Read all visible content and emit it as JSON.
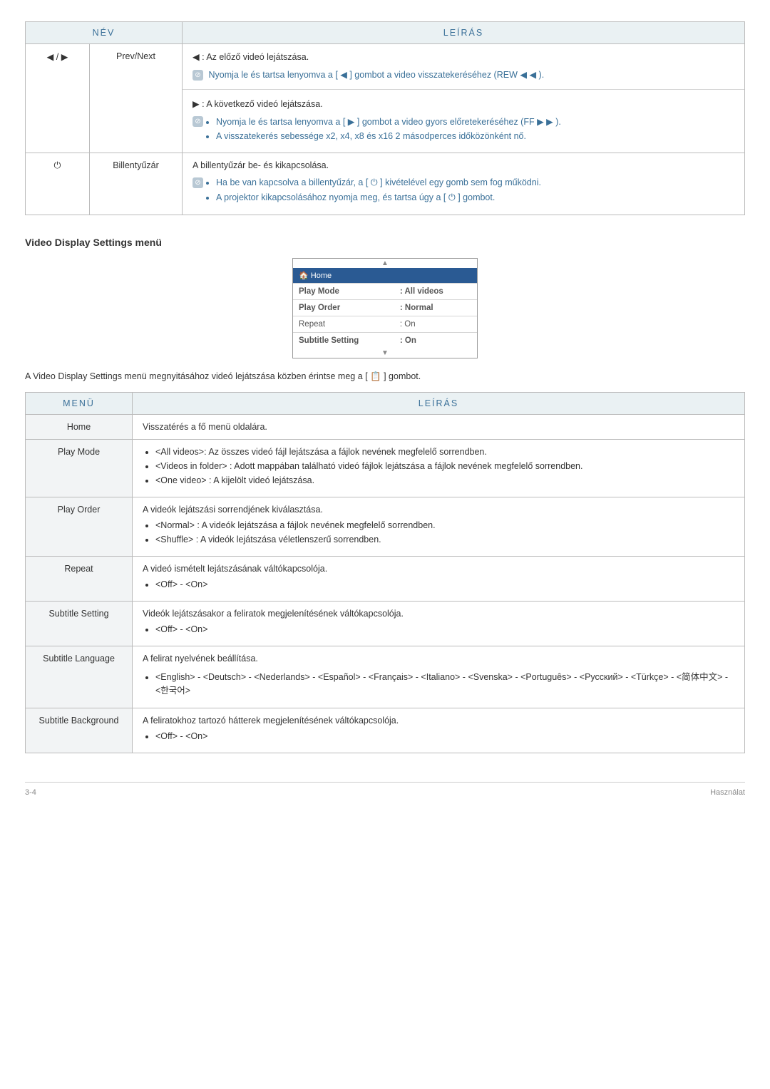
{
  "table1": {
    "headers": [
      "NÉV",
      "LEÍRÁS"
    ],
    "rows": [
      {
        "symbol": "◀ / ▶",
        "name": "Prev/Next",
        "blocks": [
          {
            "text": "◀ : Az előző videó lejátszása.",
            "note": "Nyomja le és tartsa lenyomva a [ ◀ ] gombot a video visszatekeréséhez (REW ◀ ◀ )."
          },
          {
            "text": "▶ : A következő videó lejátszása.",
            "bullets": [
              "Nyomja le és tartsa lenyomva a [ ▶ ] gombot a video gyors előretekeréséhez (FF ▶ ▶ ).",
              "A visszatekerés sebessége x2, x4, x8 és x16 2 másodperces időközönként nő."
            ]
          }
        ]
      },
      {
        "symbol": "⏻",
        "name": "Billentyűzár",
        "blocks": [
          {
            "text": "A billentyűzár be- és kikapcsolása.",
            "bullets": [
              "Ha be van kapcsolva a billentyűzár, a [ ⏻ ] kivételével egy gomb sem fog működni.",
              "A projektor kikapcsolásához nyomja meg, és tartsa úgy a [ ⏻ ] gombot."
            ]
          }
        ]
      }
    ]
  },
  "section_title": "Video Display Settings menü",
  "menu": {
    "home": "Home",
    "items": [
      {
        "k": "Play Mode",
        "v": ": All videos",
        "bold": true
      },
      {
        "k": "Play Order",
        "v": ": Normal",
        "bold": true
      },
      {
        "k": "Repeat",
        "v": ": On",
        "bold": false
      },
      {
        "k": "Subtitle Setting",
        "v": ": On",
        "bold": true
      }
    ]
  },
  "intro": "A Video Display Settings menü megnyitásához videó lejátszása közben érintse meg a [ 📋 ] gombot.",
  "table2": {
    "headers": [
      "MENÜ",
      "LEÍRÁS"
    ],
    "rows": [
      {
        "m": "Home",
        "d": [
          "Visszatérés a fő menü oldalára."
        ]
      },
      {
        "m": "Play Mode",
        "d": [
          "<All videos>: Az összes videó fájl lejátszása a fájlok nevének megfelelő sorrendben.",
          "<Videos in folder> : Adott mappában található videó fájlok lejátszása a fájlok nevének megfelelő sorrendben.",
          "<One video> : A kijelölt videó lejátszása."
        ],
        "bullets": true
      },
      {
        "m": "Play Order",
        "d": [
          "A videók lejátszási sorrendjének kiválasztása.",
          "<Normal> : A videók lejátszása a fájlok nevének megfelelő sorrendben.",
          "<Shuffle> : A videók lejátszása véletlenszerű sorrendben."
        ],
        "bullets": "after1"
      },
      {
        "m": "Repeat",
        "d": [
          "A videó ismételt lejátszásának váltókapcsolója.",
          "<Off> - <On>"
        ],
        "bullets": "after1"
      },
      {
        "m": "Subtitle Setting",
        "d": [
          "Videók lejátszásakor a feliratok megjelenítésének váltókapcsolója.",
          "<Off> - <On>"
        ],
        "bullets": "after1"
      },
      {
        "m": "Subtitle Language",
        "d": [
          "A felirat nyelvének beállítása.",
          "<English> - <Deutsch> - <Nederlands> - <Español> - <Français> - <Italiano> - <Svenska> - <Português> - <Русский> - <Türkçe> - <简体中文> - <한국어>"
        ],
        "bullets": "after1"
      },
      {
        "m": "Subtitle Background",
        "d": [
          "A feliratokhoz tartozó hátterek megjelenítésének váltókapcsolója.",
          "<Off> - <On>"
        ],
        "bullets": "after1"
      }
    ]
  },
  "footer": {
    "left": "3-4",
    "right": "Használat"
  }
}
